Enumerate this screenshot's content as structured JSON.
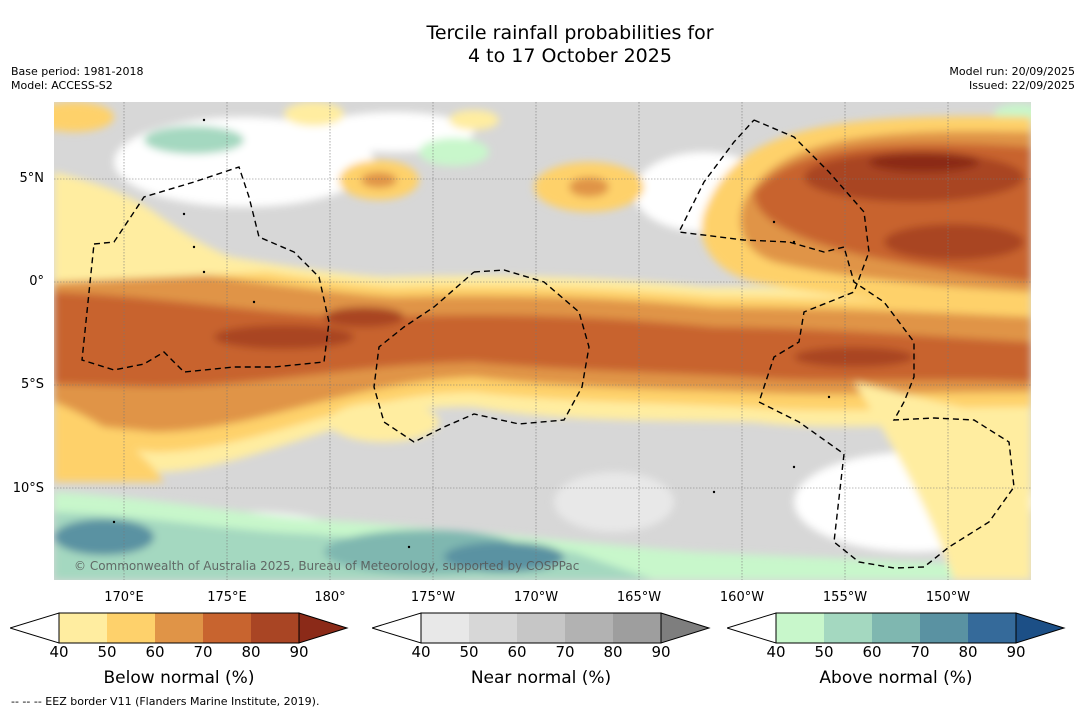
{
  "title": "Tercile rainfall probabilities for\n4 to 17 October 2025",
  "meta_left": {
    "base_period": "Base period: 1981-2018",
    "model": "Model: ACCESS-S2"
  },
  "meta_right": {
    "model_run": "Model run: 20/09/2025",
    "issued": "Issued: 22/09/2025"
  },
  "map": {
    "lat_labels": [
      "5°N",
      "0°",
      "5°S",
      "10°S"
    ],
    "lon_labels": [
      "170°E",
      "175°E",
      "180°",
      "175°W",
      "170°W",
      "165°W",
      "160°W",
      "155°W",
      "150°W"
    ],
    "copyright": "© Commonwealth of Australia 2025, Bureau of Meteorology, supported by COSPPac",
    "colors": {
      "below": [
        "#ffeda0",
        "#fed16b",
        "#e09447",
        "#c8642f",
        "#a94524",
        "#8b2a18"
      ],
      "near": [
        "#e8e8e8",
        "#d7d7d7",
        "#c6c6c6",
        "#b2b2b2",
        "#9e9e9e",
        "#7e7e7e"
      ],
      "above": [
        "#c8f7cb",
        "#a4d8c0",
        "#7fb7b0",
        "#5a92a2",
        "#356a9a",
        "#1c4f86"
      ]
    }
  },
  "colorbars": [
    {
      "title": "Below normal (%)",
      "ticks": [
        "40",
        "50",
        "60",
        "70",
        "80",
        "90"
      ]
    },
    {
      "title": "Near normal (%)",
      "ticks": [
        "40",
        "50",
        "60",
        "70",
        "80",
        "90"
      ]
    },
    {
      "title": "Above normal (%)",
      "ticks": [
        "40",
        "50",
        "60",
        "70",
        "80",
        "90"
      ]
    }
  ],
  "footnote": "--  --  -- EEZ border V11 (Flanders Marine Institute, 2019)."
}
